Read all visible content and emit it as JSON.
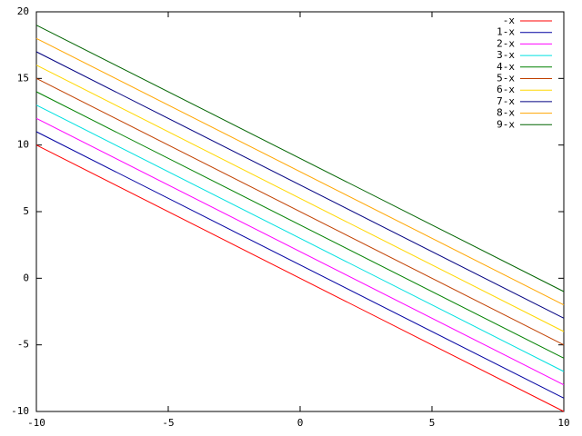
{
  "chart_data": {
    "type": "line",
    "x": [
      -10,
      10
    ],
    "xlim": [
      -10,
      10
    ],
    "xticks": [
      -10,
      -5,
      0,
      5,
      10
    ],
    "ylim": [
      -10,
      20
    ],
    "yticks": [
      -10,
      -5,
      0,
      5,
      10,
      15,
      20
    ],
    "legend": "top right",
    "series": [
      {
        "name": "-x",
        "color": "#ff0000",
        "values": [
          10,
          -10
        ]
      },
      {
        "name": "1-x",
        "color": "#0000a0",
        "values": [
          11,
          -9
        ]
      },
      {
        "name": "2-x",
        "color": "#ff00ff",
        "values": [
          12,
          -8
        ]
      },
      {
        "name": "3-x",
        "color": "#00e0e0",
        "values": [
          13,
          -7
        ]
      },
      {
        "name": "4-x",
        "color": "#008000",
        "values": [
          14,
          -6
        ]
      },
      {
        "name": "5-x",
        "color": "#c04000",
        "values": [
          15,
          -5
        ]
      },
      {
        "name": "6-x",
        "color": "#ffd700",
        "values": [
          16,
          -4
        ]
      },
      {
        "name": "7-x",
        "color": "#000080",
        "values": [
          17,
          -3
        ]
      },
      {
        "name": "8-x",
        "color": "#ffa500",
        "values": [
          18,
          -2
        ]
      },
      {
        "name": "9-x",
        "color": "#006400",
        "values": [
          19,
          -1
        ]
      }
    ]
  }
}
